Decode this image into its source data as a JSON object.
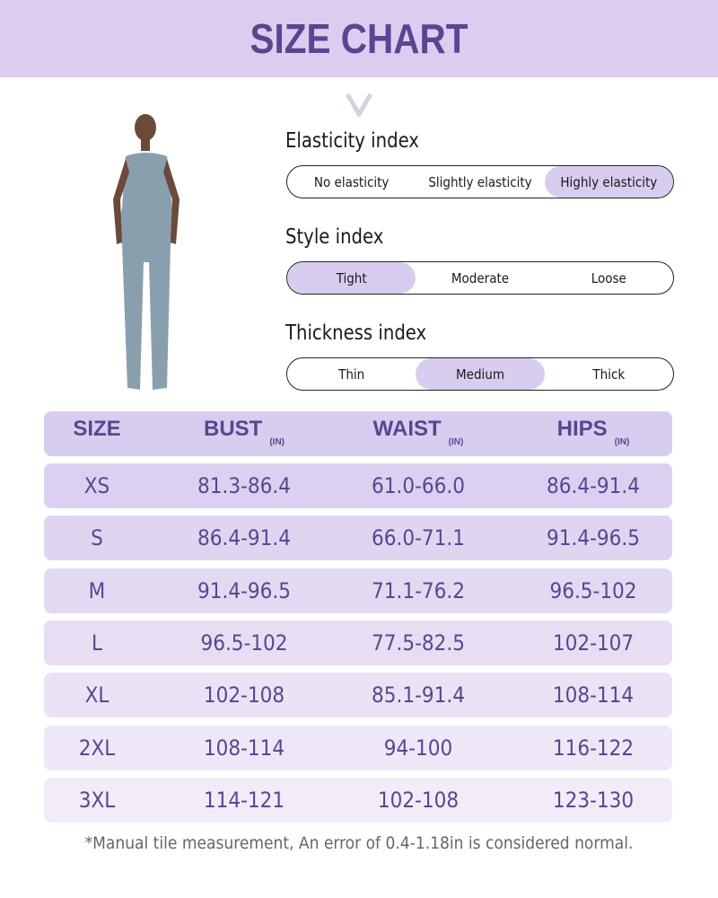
{
  "title": "SIZE CHART",
  "colors": {
    "accent": "#5b4590",
    "banner": "#dccdf0",
    "selected": "#d9cdef"
  },
  "indices": [
    {
      "label": "Elasticity index",
      "options": [
        "No elasticity",
        "Slightly elasticity",
        "Highly elasticity"
      ],
      "selected": 2
    },
    {
      "label": "Style index",
      "options": [
        "Tight",
        "Moderate",
        "Loose"
      ],
      "selected": 0
    },
    {
      "label": "Thickness index",
      "options": [
        "Thin",
        "Medium",
        "Thick"
      ],
      "selected": 1
    }
  ],
  "table": {
    "headers": [
      {
        "label": "SIZE",
        "unit": ""
      },
      {
        "label": "BUST",
        "unit": "(IN)"
      },
      {
        "label": "WAIST",
        "unit": "(IN)"
      },
      {
        "label": "HIPS",
        "unit": "(IN)"
      }
    ],
    "rows": [
      [
        "XS",
        "81.3-86.4",
        "61.0-66.0",
        "86.4-91.4"
      ],
      [
        "S",
        "86.4-91.4",
        "66.0-71.1",
        "91.4-96.5"
      ],
      [
        "M",
        "91.4-96.5",
        "71.1-76.2",
        "96.5-102"
      ],
      [
        "L",
        "96.5-102",
        "77.5-82.5",
        "102-107"
      ],
      [
        "XL",
        "102-108",
        "85.1-91.4",
        "108-114"
      ],
      [
        "2XL",
        "108-114",
        "94-100",
        "116-122"
      ],
      [
        "3XL",
        "114-121",
        "102-108",
        "123-130"
      ]
    ]
  },
  "note": "*Manual tile measurement, An error of 0.4-1.18in is considered normal."
}
